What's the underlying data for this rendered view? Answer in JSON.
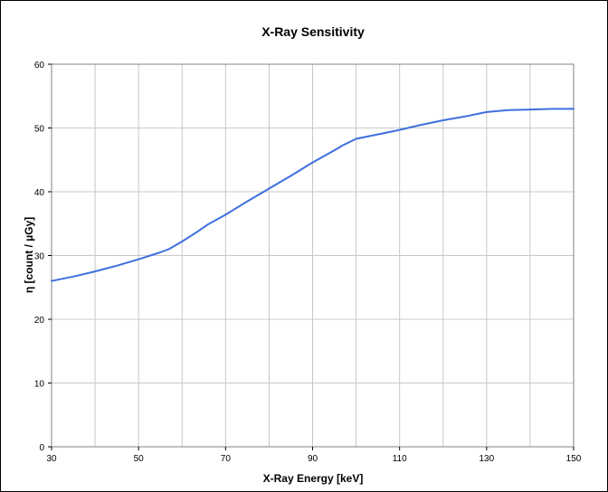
{
  "chart_data": {
    "type": "line",
    "title": "X-Ray Sensitivity",
    "xlabel": "X-Ray Energy [keV]",
    "ylabel": "η [count / µGy]",
    "xlim": [
      30,
      150
    ],
    "ylim": [
      0,
      60
    ],
    "x_ticks": [
      30,
      50,
      70,
      90,
      110,
      130,
      150
    ],
    "x_minor_gridlines": [
      40,
      60,
      80,
      100,
      120,
      140
    ],
    "y_ticks": [
      0,
      10,
      20,
      30,
      40,
      50,
      60
    ],
    "grid": true,
    "series": [
      {
        "color": "#3f6fdf",
        "x": [
          30,
          35,
          40,
          45,
          50,
          55,
          57,
          60,
          63,
          66,
          70,
          75,
          80,
          85,
          90,
          95,
          97,
          100,
          105,
          110,
          115,
          120,
          125,
          130,
          135,
          140,
          145,
          150
        ],
        "y": [
          26.0,
          26.7,
          27.5,
          28.4,
          29.4,
          30.5,
          31.0,
          32.2,
          33.5,
          34.9,
          36.4,
          38.5,
          40.5,
          42.5,
          44.6,
          46.5,
          47.3,
          48.3,
          49.0,
          49.7,
          50.5,
          51.2,
          51.8,
          52.5,
          52.8,
          52.9,
          53.0,
          53.0
        ]
      }
    ]
  }
}
